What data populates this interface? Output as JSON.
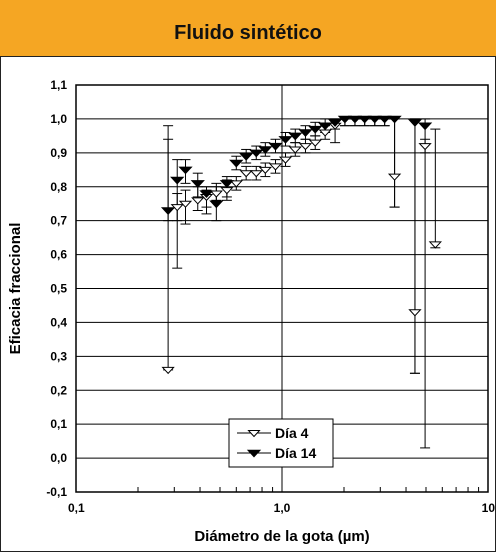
{
  "header": {
    "title": "Fluido sintético",
    "bg_color": "#f5a623"
  },
  "chart_data": {
    "type": "scatter",
    "xscale": "log",
    "xlabel": "Diámetro de la gota (µm)",
    "ylabel": "Eficacia fraccional",
    "xlim": [
      0.1,
      10
    ],
    "ylim": [
      -0.1,
      1.1
    ],
    "xticks": [
      "0,1",
      "1,0",
      "10"
    ],
    "yticks": [
      "-0,1",
      "0,0",
      "0,1",
      "0,2",
      "0,3",
      "0,4",
      "0,5",
      "0,6",
      "0,7",
      "0,8",
      "0,9",
      "1,0",
      "1,1"
    ],
    "grid": true,
    "legend_position": "lower-center",
    "series": [
      {
        "name": "Día 4",
        "marker": "open-triangle-down",
        "points": [
          {
            "x": 0.28,
            "y": 0.26,
            "lo": 0.26,
            "hi": 0.98
          },
          {
            "x": 0.31,
            "y": 0.74,
            "lo": 0.7,
            "hi": 0.78
          },
          {
            "x": 0.34,
            "y": 0.75,
            "lo": 0.69,
            "hi": 0.79
          },
          {
            "x": 0.39,
            "y": 0.76,
            "lo": 0.73,
            "hi": 0.8
          },
          {
            "x": 0.43,
            "y": 0.77,
            "lo": 0.74,
            "hi": 0.79
          },
          {
            "x": 0.48,
            "y": 0.78,
            "lo": 0.76,
            "hi": 0.81
          },
          {
            "x": 0.54,
            "y": 0.79,
            "lo": 0.77,
            "hi": 0.82
          },
          {
            "x": 0.6,
            "y": 0.81,
            "lo": 0.79,
            "hi": 0.83
          },
          {
            "x": 0.67,
            "y": 0.84,
            "lo": 0.82,
            "hi": 0.86
          },
          {
            "x": 0.75,
            "y": 0.84,
            "lo": 0.82,
            "hi": 0.86
          },
          {
            "x": 0.83,
            "y": 0.85,
            "lo": 0.83,
            "hi": 0.87
          },
          {
            "x": 0.93,
            "y": 0.86,
            "lo": 0.84,
            "hi": 0.88
          },
          {
            "x": 1.04,
            "y": 0.88,
            "lo": 0.86,
            "hi": 0.9
          },
          {
            "x": 1.16,
            "y": 0.91,
            "lo": 0.89,
            "hi": 0.93
          },
          {
            "x": 1.3,
            "y": 0.92,
            "lo": 0.9,
            "hi": 0.94
          },
          {
            "x": 1.45,
            "y": 0.93,
            "lo": 0.91,
            "hi": 0.95
          },
          {
            "x": 1.62,
            "y": 0.96,
            "lo": 0.94,
            "hi": 0.98
          },
          {
            "x": 1.81,
            "y": 0.98,
            "lo": 0.93,
            "hi": 1.0
          },
          {
            "x": 2.02,
            "y": 1.0,
            "lo": 0.98,
            "hi": 1.0
          },
          {
            "x": 2.26,
            "y": 1.0,
            "lo": 0.98,
            "hi": 1.0
          },
          {
            "x": 2.52,
            "y": 1.0,
            "lo": 0.98,
            "hi": 1.0
          },
          {
            "x": 2.82,
            "y": 1.0,
            "lo": 0.98,
            "hi": 1.0
          },
          {
            "x": 3.15,
            "y": 1.0,
            "lo": 0.98,
            "hi": 1.0
          },
          {
            "x": 3.52,
            "y": 0.83,
            "lo": 0.74,
            "hi": 1.0
          },
          {
            "x": 4.42,
            "y": 0.43,
            "lo": 0.25,
            "hi": 1.0
          },
          {
            "x": 4.95,
            "y": 0.92,
            "lo": 0.9,
            "hi": 0.94
          },
          {
            "x": 5.55,
            "y": 0.63,
            "lo": 0.62,
            "hi": 0.97
          }
        ]
      },
      {
        "name": "Día 14",
        "marker": "filled-triangle-down",
        "points": [
          {
            "x": 0.28,
            "y": 0.73,
            "lo": 0.7,
            "hi": 0.94
          },
          {
            "x": 0.31,
            "y": 0.82,
            "lo": 0.56,
            "hi": 0.88
          },
          {
            "x": 0.34,
            "y": 0.85,
            "lo": 0.81,
            "hi": 0.88
          },
          {
            "x": 0.39,
            "y": 0.81,
            "lo": 0.77,
            "hi": 0.84
          },
          {
            "x": 0.43,
            "y": 0.78,
            "lo": 0.72,
            "hi": 0.8
          },
          {
            "x": 0.48,
            "y": 0.75,
            "lo": 0.7,
            "hi": 0.8
          },
          {
            "x": 0.54,
            "y": 0.81,
            "lo": 0.76,
            "hi": 0.83
          },
          {
            "x": 0.6,
            "y": 0.87,
            "lo": 0.85,
            "hi": 0.89
          },
          {
            "x": 0.67,
            "y": 0.89,
            "lo": 0.87,
            "hi": 0.91
          },
          {
            "x": 0.75,
            "y": 0.9,
            "lo": 0.88,
            "hi": 0.92
          },
          {
            "x": 0.83,
            "y": 0.91,
            "lo": 0.89,
            "hi": 0.93
          },
          {
            "x": 0.93,
            "y": 0.92,
            "lo": 0.9,
            "hi": 0.94
          },
          {
            "x": 1.04,
            "y": 0.94,
            "lo": 0.92,
            "hi": 0.96
          },
          {
            "x": 1.16,
            "y": 0.95,
            "lo": 0.93,
            "hi": 0.97
          },
          {
            "x": 1.3,
            "y": 0.96,
            "lo": 0.94,
            "hi": 0.98
          },
          {
            "x": 1.45,
            "y": 0.97,
            "lo": 0.95,
            "hi": 0.99
          },
          {
            "x": 1.62,
            "y": 0.98,
            "lo": 0.96,
            "hi": 1.0
          },
          {
            "x": 1.81,
            "y": 0.99,
            "lo": 0.97,
            "hi": 1.0
          },
          {
            "x": 2.02,
            "y": 1.0,
            "lo": 0.98,
            "hi": 1.0
          },
          {
            "x": 2.26,
            "y": 1.0,
            "lo": 0.98,
            "hi": 1.0
          },
          {
            "x": 2.52,
            "y": 1.0,
            "lo": 0.98,
            "hi": 1.0
          },
          {
            "x": 2.82,
            "y": 1.0,
            "lo": 0.98,
            "hi": 1.0
          },
          {
            "x": 3.15,
            "y": 1.0,
            "lo": 0.98,
            "hi": 1.0
          },
          {
            "x": 3.52,
            "y": 1.0,
            "lo": 0.74,
            "hi": 1.0
          },
          {
            "x": 4.42,
            "y": 0.99,
            "lo": 0.25,
            "hi": 1.0
          },
          {
            "x": 4.95,
            "y": 0.98,
            "lo": 0.03,
            "hi": 1.0
          }
        ]
      }
    ]
  }
}
